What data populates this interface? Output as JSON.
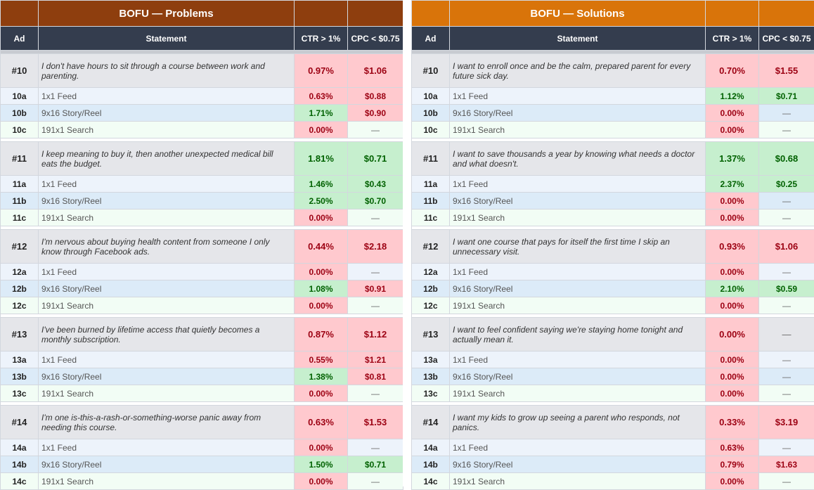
{
  "panels": {
    "problems": {
      "title": "BOFU — Problems",
      "header_color": "#8e3e0e",
      "groups": [
        {
          "id": "#10",
          "statement": "I don't have hours to sit through a course between work and parenting.",
          "ctr": "0.97%",
          "ctr_status": "bad",
          "cpc": "$1.06",
          "cpc_status": "bad",
          "variants": [
            {
              "id": "10a",
              "format": "1x1 Feed",
              "ctr": "0.63%",
              "ctr_status": "bad",
              "cpc": "$0.88",
              "cpc_status": "bad"
            },
            {
              "id": "10b",
              "format": "9x16 Story/Reel",
              "ctr": "1.71%",
              "ctr_status": "good",
              "cpc": "$0.90",
              "cpc_status": "bad"
            },
            {
              "id": "10c",
              "format": "191x1 Search",
              "ctr": "0.00%",
              "ctr_status": "bad",
              "cpc": "—",
              "cpc_status": "none"
            }
          ]
        },
        {
          "id": "#11",
          "statement": "I keep meaning to buy it, then another unexpected medical bill eats the budget.",
          "ctr": "1.81%",
          "ctr_status": "good",
          "cpc": "$0.71",
          "cpc_status": "good",
          "variants": [
            {
              "id": "11a",
              "format": "1x1 Feed",
              "ctr": "1.46%",
              "ctr_status": "good",
              "cpc": "$0.43",
              "cpc_status": "good"
            },
            {
              "id": "11b",
              "format": "9x16 Story/Reel",
              "ctr": "2.50%",
              "ctr_status": "good",
              "cpc": "$0.70",
              "cpc_status": "good"
            },
            {
              "id": "11c",
              "format": "191x1 Search",
              "ctr": "0.00%",
              "ctr_status": "bad",
              "cpc": "—",
              "cpc_status": "none"
            }
          ]
        },
        {
          "id": "#12",
          "statement": "I'm nervous about buying health content from someone I only know through Facebook ads.",
          "ctr": "0.44%",
          "ctr_status": "bad",
          "cpc": "$2.18",
          "cpc_status": "bad",
          "variants": [
            {
              "id": "12a",
              "format": "1x1 Feed",
              "ctr": "0.00%",
              "ctr_status": "bad",
              "cpc": "—",
              "cpc_status": "none"
            },
            {
              "id": "12b",
              "format": "9x16 Story/Reel",
              "ctr": "1.08%",
              "ctr_status": "good",
              "cpc": "$0.91",
              "cpc_status": "bad"
            },
            {
              "id": "12c",
              "format": "191x1 Search",
              "ctr": "0.00%",
              "ctr_status": "bad",
              "cpc": "—",
              "cpc_status": "none"
            }
          ]
        },
        {
          "id": "#13",
          "statement": "I've been burned by lifetime access that quietly becomes a monthly subscription.",
          "ctr": "0.87%",
          "ctr_status": "bad",
          "cpc": "$1.12",
          "cpc_status": "bad",
          "variants": [
            {
              "id": "13a",
              "format": "1x1 Feed",
              "ctr": "0.55%",
              "ctr_status": "bad",
              "cpc": "$1.21",
              "cpc_status": "bad"
            },
            {
              "id": "13b",
              "format": "9x16 Story/Reel",
              "ctr": "1.38%",
              "ctr_status": "good",
              "cpc": "$0.81",
              "cpc_status": "bad"
            },
            {
              "id": "13c",
              "format": "191x1 Search",
              "ctr": "0.00%",
              "ctr_status": "bad",
              "cpc": "—",
              "cpc_status": "none"
            }
          ]
        },
        {
          "id": "#14",
          "statement": "I'm one is-this-a-rash-or-something-worse panic away from needing this course.",
          "ctr": "0.63%",
          "ctr_status": "bad",
          "cpc": "$1.53",
          "cpc_status": "bad",
          "variants": [
            {
              "id": "14a",
              "format": "1x1 Feed",
              "ctr": "0.00%",
              "ctr_status": "bad",
              "cpc": "—",
              "cpc_status": "none"
            },
            {
              "id": "14b",
              "format": "9x16 Story/Reel",
              "ctr": "1.50%",
              "ctr_status": "good",
              "cpc": "$0.71",
              "cpc_status": "good"
            },
            {
              "id": "14c",
              "format": "191x1 Search",
              "ctr": "0.00%",
              "ctr_status": "bad",
              "cpc": "—",
              "cpc_status": "none"
            }
          ]
        }
      ]
    },
    "solutions": {
      "title": "BOFU — Solutions",
      "header_color": "#d9740a",
      "groups": [
        {
          "id": "#10",
          "statement": "I want to enroll once and be the calm, prepared parent for every future sick day.",
          "ctr": "0.70%",
          "ctr_status": "bad",
          "cpc": "$1.55",
          "cpc_status": "bad",
          "variants": [
            {
              "id": "10a",
              "format": "1x1 Feed",
              "ctr": "1.12%",
              "ctr_status": "good",
              "cpc": "$0.71",
              "cpc_status": "good"
            },
            {
              "id": "10b",
              "format": "9x16 Story/Reel",
              "ctr": "0.00%",
              "ctr_status": "bad",
              "cpc": "—",
              "cpc_status": "none"
            },
            {
              "id": "10c",
              "format": "191x1 Search",
              "ctr": "0.00%",
              "ctr_status": "bad",
              "cpc": "—",
              "cpc_status": "none"
            }
          ]
        },
        {
          "id": "#11",
          "statement": "I want to save thousands a year by knowing what needs a doctor and what doesn't.",
          "ctr": "1.37%",
          "ctr_status": "good",
          "cpc": "$0.68",
          "cpc_status": "good",
          "variants": [
            {
              "id": "11a",
              "format": "1x1 Feed",
              "ctr": "2.37%",
              "ctr_status": "good",
              "cpc": "$0.25",
              "cpc_status": "good"
            },
            {
              "id": "11b",
              "format": "9x16 Story/Reel",
              "ctr": "0.00%",
              "ctr_status": "bad",
              "cpc": "—",
              "cpc_status": "none"
            },
            {
              "id": "11c",
              "format": "191x1 Search",
              "ctr": "0.00%",
              "ctr_status": "bad",
              "cpc": "—",
              "cpc_status": "none"
            }
          ]
        },
        {
          "id": "#12",
          "statement": "I want one course that pays for itself the first time I skip an unnecessary visit.",
          "ctr": "0.93%",
          "ctr_status": "bad",
          "cpc": "$1.06",
          "cpc_status": "bad",
          "variants": [
            {
              "id": "12a",
              "format": "1x1 Feed",
              "ctr": "0.00%",
              "ctr_status": "bad",
              "cpc": "—",
              "cpc_status": "none"
            },
            {
              "id": "12b",
              "format": "9x16 Story/Reel",
              "ctr": "2.10%",
              "ctr_status": "good",
              "cpc": "$0.59",
              "cpc_status": "good"
            },
            {
              "id": "12c",
              "format": "191x1 Search",
              "ctr": "0.00%",
              "ctr_status": "bad",
              "cpc": "—",
              "cpc_status": "none"
            }
          ]
        },
        {
          "id": "#13",
          "statement": "I want to feel confident saying we're staying home tonight and actually mean it.",
          "ctr": "0.00%",
          "ctr_status": "bad",
          "cpc": "—",
          "cpc_status": "none",
          "variants": [
            {
              "id": "13a",
              "format": "1x1 Feed",
              "ctr": "0.00%",
              "ctr_status": "bad",
              "cpc": "—",
              "cpc_status": "none"
            },
            {
              "id": "13b",
              "format": "9x16 Story/Reel",
              "ctr": "0.00%",
              "ctr_status": "bad",
              "cpc": "—",
              "cpc_status": "none"
            },
            {
              "id": "13c",
              "format": "191x1 Search",
              "ctr": "0.00%",
              "ctr_status": "bad",
              "cpc": "—",
              "cpc_status": "none"
            }
          ]
        },
        {
          "id": "#14",
          "statement": "I want my kids to grow up seeing a parent who responds, not panics.",
          "ctr": "0.33%",
          "ctr_status": "bad",
          "cpc": "$3.19",
          "cpc_status": "bad",
          "variants": [
            {
              "id": "14a",
              "format": "1x1 Feed",
              "ctr": "0.63%",
              "ctr_status": "bad",
              "cpc": "—",
              "cpc_status": "none"
            },
            {
              "id": "14b",
              "format": "9x16 Story/Reel",
              "ctr": "0.79%",
              "ctr_status": "bad",
              "cpc": "$1.63",
              "cpc_status": "bad"
            },
            {
              "id": "14c",
              "format": "191x1 Search",
              "ctr": "0.00%",
              "ctr_status": "bad",
              "cpc": "—",
              "cpc_status": "none"
            }
          ]
        }
      ]
    }
  },
  "columns": {
    "ad": "Ad",
    "statement": "Statement",
    "ctr": "CTR > 1%",
    "cpc": "CPC < $0.75"
  },
  "status_colors": {
    "good_bg": "#c6efce",
    "good_text": "#006100",
    "bad_bg": "#ffc9ce",
    "bad_text": "#9c0012"
  }
}
